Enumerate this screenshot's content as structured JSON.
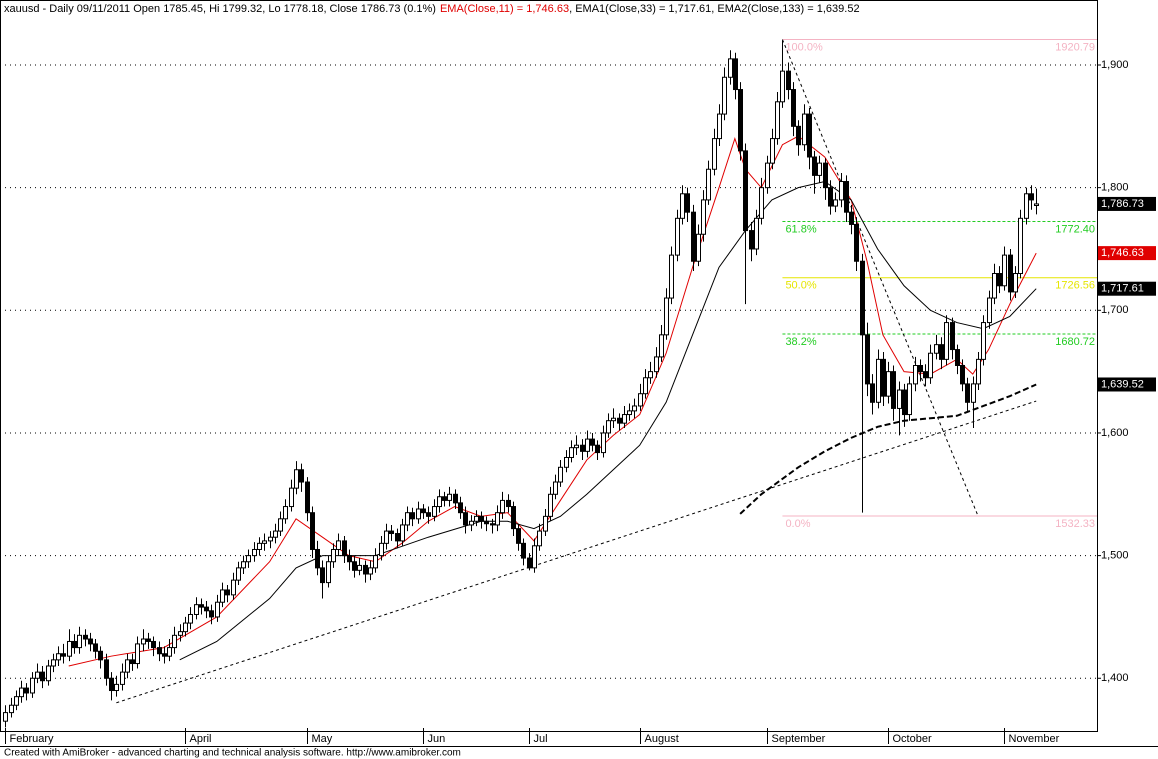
{
  "chart_data": {
    "type": "candlestick",
    "title": "xauusd - Daily 09/11/2011 Open 1785.45, Hi 1799.32, Lo 1778.18, Close 1786.73 (0.1%)",
    "footer": "Created with AmiBroker - advanced charting and technical analysis software. http://www.amibroker.com",
    "close_label": "1,786.73",
    "up_color": "#ffffff",
    "down_color": "#000000",
    "xlim": [
      -1,
      206.5
    ],
    "xticks": [
      {
        "value": 0,
        "label": "February"
      },
      {
        "value": 34,
        "label": "April"
      },
      {
        "value": 57,
        "label": "May"
      },
      {
        "value": 79,
        "label": "Jun"
      },
      {
        "value": 99,
        "label": "Jul"
      },
      {
        "value": 120,
        "label": "August"
      },
      {
        "value": 144,
        "label": "September"
      },
      {
        "value": 167,
        "label": "October"
      },
      {
        "value": 189,
        "label": "November"
      }
    ],
    "ylim": [
      1357,
      1953
    ],
    "yticks": [
      {
        "value": 1400,
        "label": "1,400"
      },
      {
        "value": 1500,
        "label": "1,500"
      },
      {
        "value": 1600,
        "label": "1,600"
      },
      {
        "value": 1700,
        "label": "1,700"
      },
      {
        "value": 1800,
        "label": "1,800"
      },
      {
        "value": 1900,
        "label": "1,900"
      }
    ],
    "grid": true,
    "candles": [
      [
        1365,
        1378,
        1360,
        1372
      ],
      [
        1372,
        1384,
        1368,
        1378
      ],
      [
        1378,
        1390,
        1374,
        1385
      ],
      [
        1385,
        1398,
        1380,
        1392
      ],
      [
        1392,
        1396,
        1382,
        1388
      ],
      [
        1388,
        1405,
        1384,
        1400
      ],
      [
        1400,
        1412,
        1396,
        1405
      ],
      [
        1405,
        1410,
        1392,
        1398
      ],
      [
        1398,
        1415,
        1394,
        1410
      ],
      [
        1410,
        1420,
        1405,
        1415
      ],
      [
        1415,
        1426,
        1410,
        1420
      ],
      [
        1420,
        1428,
        1412,
        1418
      ],
      [
        1418,
        1440,
        1414,
        1430
      ],
      [
        1430,
        1436,
        1420,
        1425
      ],
      [
        1425,
        1442,
        1420,
        1435
      ],
      [
        1435,
        1440,
        1426,
        1432
      ],
      [
        1432,
        1437,
        1422,
        1428
      ],
      [
        1428,
        1432,
        1416,
        1422
      ],
      [
        1422,
        1426,
        1408,
        1415
      ],
      [
        1415,
        1420,
        1394,
        1400
      ],
      [
        1400,
        1405,
        1382,
        1390
      ],
      [
        1390,
        1402,
        1385,
        1395
      ],
      [
        1395,
        1412,
        1390,
        1405
      ],
      [
        1405,
        1420,
        1400,
        1415
      ],
      [
        1415,
        1420,
        1406,
        1412
      ],
      [
        1412,
        1434,
        1408,
        1428
      ],
      [
        1428,
        1440,
        1422,
        1432
      ],
      [
        1432,
        1437,
        1424,
        1430
      ],
      [
        1430,
        1434,
        1418,
        1425
      ],
      [
        1425,
        1430,
        1414,
        1420
      ],
      [
        1420,
        1426,
        1412,
        1418
      ],
      [
        1418,
        1432,
        1414,
        1425
      ],
      [
        1425,
        1442,
        1420,
        1435
      ],
      [
        1435,
        1444,
        1430,
        1438
      ],
      [
        1438,
        1450,
        1434,
        1445
      ],
      [
        1445,
        1458,
        1440,
        1452
      ],
      [
        1452,
        1466,
        1448,
        1460
      ],
      [
        1460,
        1465,
        1452,
        1458
      ],
      [
        1458,
        1463,
        1449,
        1455
      ],
      [
        1455,
        1460,
        1444,
        1450
      ],
      [
        1450,
        1468,
        1446,
        1462
      ],
      [
        1462,
        1478,
        1458,
        1472
      ],
      [
        1472,
        1476,
        1462,
        1468
      ],
      [
        1468,
        1486,
        1464,
        1480
      ],
      [
        1480,
        1495,
        1476,
        1490
      ],
      [
        1490,
        1500,
        1485,
        1495
      ],
      [
        1495,
        1505,
        1490,
        1500
      ],
      [
        1500,
        1511,
        1495,
        1505
      ],
      [
        1505,
        1515,
        1500,
        1510
      ],
      [
        1510,
        1518,
        1504,
        1512
      ],
      [
        1512,
        1520,
        1506,
        1515
      ],
      [
        1515,
        1526,
        1510,
        1520
      ],
      [
        1520,
        1536,
        1516,
        1530
      ],
      [
        1530,
        1546,
        1526,
        1540
      ],
      [
        1540,
        1562,
        1536,
        1555
      ],
      [
        1555,
        1577,
        1550,
        1570
      ],
      [
        1570,
        1575,
        1552,
        1560
      ],
      [
        1560,
        1564,
        1528,
        1535
      ],
      [
        1535,
        1540,
        1498,
        1505
      ],
      [
        1505,
        1512,
        1484,
        1490
      ],
      [
        1490,
        1496,
        1465,
        1478
      ],
      [
        1478,
        1500,
        1474,
        1495
      ],
      [
        1495,
        1510,
        1490,
        1505
      ],
      [
        1505,
        1518,
        1500,
        1512
      ],
      [
        1512,
        1516,
        1494,
        1500
      ],
      [
        1500,
        1505,
        1488,
        1495
      ],
      [
        1495,
        1500,
        1482,
        1488
      ],
      [
        1488,
        1498,
        1484,
        1492
      ],
      [
        1492,
        1496,
        1478,
        1485
      ],
      [
        1485,
        1496,
        1480,
        1490
      ],
      [
        1490,
        1506,
        1486,
        1500
      ],
      [
        1500,
        1516,
        1496,
        1510
      ],
      [
        1510,
        1526,
        1505,
        1520
      ],
      [
        1520,
        1525,
        1512,
        1518
      ],
      [
        1518,
        1522,
        1506,
        1512
      ],
      [
        1512,
        1530,
        1508,
        1525
      ],
      [
        1525,
        1540,
        1520,
        1535
      ],
      [
        1535,
        1539,
        1524,
        1530
      ],
      [
        1530,
        1544,
        1526,
        1538
      ],
      [
        1538,
        1542,
        1530,
        1535
      ],
      [
        1535,
        1540,
        1526,
        1532
      ],
      [
        1532,
        1546,
        1528,
        1540
      ],
      [
        1540,
        1554,
        1535,
        1548
      ],
      [
        1548,
        1552,
        1540,
        1545
      ],
      [
        1545,
        1556,
        1540,
        1550
      ],
      [
        1550,
        1554,
        1538,
        1543
      ],
      [
        1543,
        1548,
        1530,
        1535
      ],
      [
        1535,
        1540,
        1518,
        1525
      ],
      [
        1525,
        1533,
        1520,
        1528
      ],
      [
        1528,
        1537,
        1524,
        1532
      ],
      [
        1532,
        1536,
        1522,
        1528
      ],
      [
        1528,
        1532,
        1520,
        1526
      ],
      [
        1526,
        1530,
        1518,
        1525
      ],
      [
        1525,
        1541,
        1520,
        1535
      ],
      [
        1535,
        1552,
        1530,
        1545
      ],
      [
        1545,
        1550,
        1535,
        1540
      ],
      [
        1540,
        1544,
        1516,
        1522
      ],
      [
        1522,
        1526,
        1504,
        1510
      ],
      [
        1510,
        1514,
        1492,
        1498
      ],
      [
        1498,
        1502,
        1488,
        1490
      ],
      [
        1490,
        1514,
        1486,
        1508
      ],
      [
        1508,
        1526,
        1504,
        1520
      ],
      [
        1520,
        1538,
        1516,
        1532
      ],
      [
        1532,
        1556,
        1528,
        1550
      ],
      [
        1550,
        1566,
        1546,
        1560
      ],
      [
        1560,
        1578,
        1556,
        1572
      ],
      [
        1572,
        1586,
        1568,
        1580
      ],
      [
        1580,
        1594,
        1576,
        1588
      ],
      [
        1588,
        1598,
        1582,
        1590
      ],
      [
        1590,
        1595,
        1578,
        1585
      ],
      [
        1585,
        1602,
        1580,
        1595
      ],
      [
        1595,
        1600,
        1585,
        1590
      ],
      [
        1590,
        1594,
        1578,
        1584
      ],
      [
        1584,
        1606,
        1580,
        1600
      ],
      [
        1600,
        1616,
        1596,
        1610
      ],
      [
        1610,
        1620,
        1604,
        1612
      ],
      [
        1612,
        1616,
        1602,
        1608
      ],
      [
        1608,
        1622,
        1604,
        1615
      ],
      [
        1615,
        1624,
        1610,
        1618
      ],
      [
        1618,
        1628,
        1612,
        1622
      ],
      [
        1622,
        1640,
        1618,
        1632
      ],
      [
        1632,
        1652,
        1628,
        1645
      ],
      [
        1645,
        1658,
        1640,
        1650
      ],
      [
        1650,
        1670,
        1645,
        1662
      ],
      [
        1662,
        1688,
        1658,
        1680
      ],
      [
        1680,
        1718,
        1676,
        1710
      ],
      [
        1710,
        1752,
        1705,
        1745
      ],
      [
        1745,
        1782,
        1740,
        1775
      ],
      [
        1775,
        1802,
        1770,
        1795
      ],
      [
        1795,
        1800,
        1772,
        1780
      ],
      [
        1780,
        1786,
        1732,
        1740
      ],
      [
        1740,
        1770,
        1736,
        1762
      ],
      [
        1762,
        1798,
        1756,
        1790
      ],
      [
        1790,
        1822,
        1786,
        1815
      ],
      [
        1815,
        1848,
        1810,
        1840
      ],
      [
        1840,
        1868,
        1834,
        1860
      ],
      [
        1860,
        1898,
        1855,
        1890
      ],
      [
        1890,
        1912,
        1884,
        1905
      ],
      [
        1905,
        1910,
        1872,
        1880
      ],
      [
        1880,
        1886,
        1822,
        1830
      ],
      [
        1830,
        1836,
        1705,
        1765
      ],
      [
        1765,
        1772,
        1740,
        1750
      ],
      [
        1750,
        1782,
        1745,
        1775
      ],
      [
        1775,
        1808,
        1770,
        1800
      ],
      [
        1800,
        1826,
        1795,
        1820
      ],
      [
        1820,
        1848,
        1815,
        1840
      ],
      [
        1840,
        1878,
        1835,
        1870
      ],
      [
        1870,
        1920,
        1865,
        1895
      ],
      [
        1895,
        1902,
        1872,
        1880
      ],
      [
        1880,
        1886,
        1842,
        1850
      ],
      [
        1850,
        1855,
        1826,
        1835
      ],
      [
        1835,
        1868,
        1830,
        1860
      ],
      [
        1860,
        1865,
        1815,
        1825
      ],
      [
        1825,
        1830,
        1795,
        1810
      ],
      [
        1810,
        1826,
        1804,
        1820
      ],
      [
        1820,
        1824,
        1790,
        1800
      ],
      [
        1800,
        1806,
        1778,
        1785
      ],
      [
        1785,
        1796,
        1780,
        1790
      ],
      [
        1790,
        1812,
        1784,
        1805
      ],
      [
        1805,
        1810,
        1772,
        1780
      ],
      [
        1780,
        1786,
        1762,
        1770
      ],
      [
        1770,
        1776,
        1732,
        1740
      ],
      [
        1740,
        1746,
        1535,
        1680
      ],
      [
        1680,
        1690,
        1630,
        1640
      ],
      [
        1640,
        1648,
        1615,
        1625
      ],
      [
        1625,
        1668,
        1620,
        1660
      ],
      [
        1660,
        1666,
        1622,
        1630
      ],
      [
        1630,
        1658,
        1624,
        1650
      ],
      [
        1650,
        1655,
        1610,
        1620
      ],
      [
        1620,
        1642,
        1598,
        1635
      ],
      [
        1635,
        1640,
        1605,
        1615
      ],
      [
        1615,
        1646,
        1610,
        1640
      ],
      [
        1640,
        1662,
        1634,
        1655
      ],
      [
        1655,
        1660,
        1642,
        1650
      ],
      [
        1650,
        1656,
        1638,
        1645
      ],
      [
        1645,
        1672,
        1640,
        1665
      ],
      [
        1665,
        1680,
        1660,
        1672
      ],
      [
        1672,
        1678,
        1652,
        1660
      ],
      [
        1660,
        1696,
        1655,
        1690
      ],
      [
        1690,
        1694,
        1660,
        1668
      ],
      [
        1668,
        1672,
        1648,
        1655
      ],
      [
        1655,
        1660,
        1634,
        1640
      ],
      [
        1640,
        1645,
        1618,
        1625
      ],
      [
        1625,
        1646,
        1604,
        1640
      ],
      [
        1640,
        1666,
        1635,
        1660
      ],
      [
        1660,
        1696,
        1655,
        1690
      ],
      [
        1690,
        1716,
        1685,
        1710
      ],
      [
        1710,
        1738,
        1705,
        1730
      ],
      [
        1730,
        1736,
        1714,
        1720
      ],
      [
        1720,
        1752,
        1716,
        1745
      ],
      [
        1745,
        1750,
        1708,
        1715
      ],
      [
        1715,
        1736,
        1710,
        1730
      ],
      [
        1730,
        1782,
        1726,
        1775
      ],
      [
        1775,
        1800,
        1770,
        1795
      ],
      [
        1795,
        1802,
        1782,
        1790
      ],
      [
        1785.45,
        1799.32,
        1778.18,
        1786.73
      ]
    ],
    "series": [
      {
        "name": "EMA(Close,11)",
        "legend": "EMA(Close,11) = 1,746.63",
        "end_label": "1,746.63",
        "color": "#e00000",
        "width": 1,
        "dashed": false,
        "x": [
          12,
          20,
          30,
          40,
          50,
          55,
          60,
          65,
          70,
          75,
          80,
          85,
          90,
          95,
          100,
          105,
          110,
          115,
          120,
          125,
          130,
          135,
          138,
          140,
          143,
          147,
          150,
          155,
          160,
          163,
          166,
          170,
          175,
          180,
          183,
          186,
          190,
          195
        ],
        "values": [
          1410,
          1418,
          1425,
          1450,
          1495,
          1530,
          1515,
          1500,
          1495,
          1510,
          1528,
          1540,
          1532,
          1535,
          1512,
          1545,
          1578,
          1598,
          1615,
          1665,
          1735,
          1800,
          1840,
          1815,
          1800,
          1835,
          1842,
          1825,
          1790,
          1740,
          1680,
          1650,
          1648,
          1660,
          1648,
          1668,
          1705,
          1746.63
        ]
      },
      {
        "name": "EMA1(Close,33)",
        "legend": "EMA1(Close,33) = 1,717.61",
        "end_label": "1,717.61",
        "color": "#000000",
        "width": 1,
        "dashed": false,
        "x": [
          33,
          40,
          50,
          55,
          60,
          70,
          80,
          90,
          95,
          100,
          105,
          110,
          115,
          120,
          125,
          130,
          135,
          140,
          145,
          150,
          155,
          160,
          165,
          170,
          175,
          180,
          185,
          190,
          195
        ],
        "values": [
          1415,
          1430,
          1465,
          1490,
          1500,
          1500,
          1515,
          1528,
          1528,
          1522,
          1532,
          1550,
          1570,
          1590,
          1625,
          1680,
          1735,
          1765,
          1790,
          1800,
          1805,
          1790,
          1750,
          1720,
          1700,
          1690,
          1685,
          1695,
          1717.61
        ]
      },
      {
        "name": "EMA2(Close,133)",
        "legend": "EMA2(Close,133) = 1,639.52",
        "end_label": "1,639.52",
        "color": "#000000",
        "width": 2,
        "dashed": true,
        "x": [
          139,
          143,
          150,
          155,
          160,
          165,
          170,
          175,
          180,
          185,
          190,
          195
        ],
        "values": [
          1534,
          1550,
          1572,
          1585,
          1596,
          1605,
          1610,
          1612,
          1614,
          1622,
          1630,
          1639.52
        ]
      }
    ],
    "trendlines": [
      {
        "x": [
          21,
          195
        ],
        "values": [
          1380,
          1626
        ]
      },
      {
        "x": [
          147,
          184
        ],
        "values": [
          1920.79,
          1532.33
        ]
      }
    ],
    "fib_start": 147,
    "fib_levels": [
      {
        "name": "100.0%",
        "value": 1920.79,
        "color": "#f4b3c3",
        "dashed": false
      },
      {
        "name": "61.8%",
        "value": 1772.4,
        "value_label": "1772.40",
        "color": "#22cc22",
        "dashed": true
      },
      {
        "name": "50.0%",
        "value": 1726.56,
        "color": "#e6e600",
        "dashed": false
      },
      {
        "name": "38.2%",
        "value": 1680.72,
        "color": "#22cc22",
        "dashed": true
      },
      {
        "name": "0.0%",
        "value": 1532.33,
        "color": "#f4b3c3",
        "dashed": false
      }
    ]
  }
}
